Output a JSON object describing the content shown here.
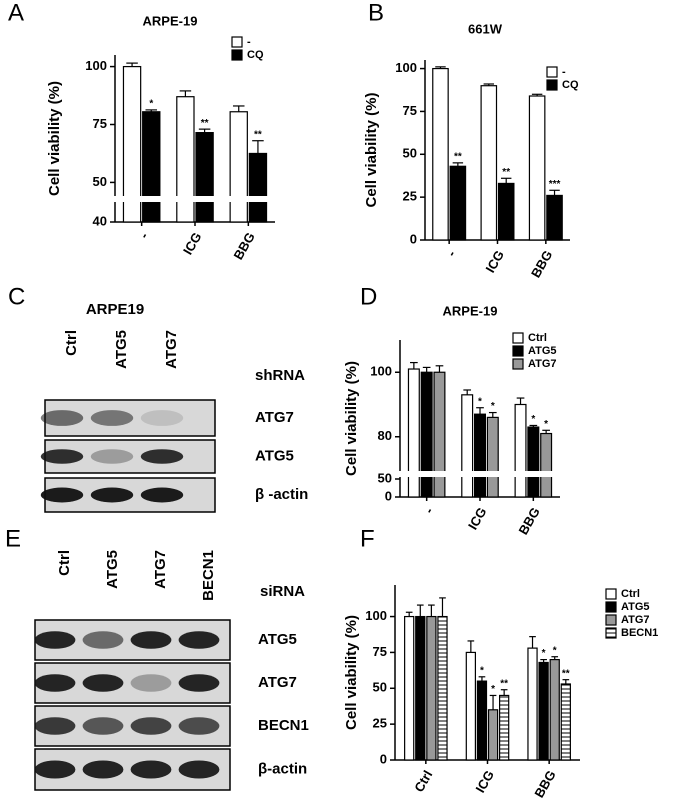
{
  "chart_data": [
    {
      "type": "bar",
      "panel": "A",
      "title": "ARPE-19",
      "y_label": "Cell viability (%)",
      "categories": [
        "-",
        "ICG",
        "BBG"
      ],
      "ylim": [
        40,
        105
      ],
      "axis_break": [
        41,
        45
      ],
      "yticks": [
        40,
        50,
        75,
        100
      ],
      "legend": "top-right",
      "series": [
        {
          "name": "-",
          "color": "#ffffff",
          "values": [
            100,
            87,
            80.5
          ],
          "errors": [
            1.5,
            2.5,
            2.5
          ]
        },
        {
          "name": "CQ",
          "color": "#000000",
          "values": [
            80.5,
            71.5,
            62.5
          ],
          "errors": [
            0.8,
            1.5,
            5.5
          ],
          "annotations": [
            "*",
            "**",
            "**"
          ]
        }
      ]
    },
    {
      "type": "bar",
      "panel": "B",
      "title": "661W",
      "y_label": "Cell viability (%)",
      "categories": [
        "-",
        "ICG",
        "BBG"
      ],
      "ylim": [
        0,
        105
      ],
      "yticks": [
        0,
        25,
        50,
        75,
        100
      ],
      "legend": "top-right",
      "series": [
        {
          "name": "-",
          "color": "#ffffff",
          "values": [
            100,
            90,
            84
          ],
          "errors": [
            1,
            1,
            1
          ]
        },
        {
          "name": "CQ",
          "color": "#000000",
          "values": [
            43,
            33,
            26
          ],
          "errors": [
            2,
            3,
            3
          ],
          "annotations": [
            "**",
            "**",
            "***"
          ]
        }
      ]
    },
    {
      "type": "bar",
      "panel": "D",
      "title": "ARPE-19",
      "y_label": "Cell viability (%)",
      "categories": [
        "-",
        "ICG",
        "BBG"
      ],
      "ylim": [
        0,
        110
      ],
      "axis_break": [
        50,
        70
      ],
      "yticks": [
        0,
        50,
        80,
        100
      ],
      "legend": "top-right",
      "series": [
        {
          "name": "Ctrl",
          "color": "#ffffff",
          "values": [
            101,
            93,
            90
          ],
          "errors": [
            2,
            1.5,
            2
          ]
        },
        {
          "name": "ATG5",
          "color": "#000000",
          "values": [
            100,
            87,
            83
          ],
          "errors": [
            1.5,
            2,
            0.5
          ],
          "annotations": [
            null,
            "*",
            "*"
          ]
        },
        {
          "name": "ATG7",
          "color": "#999999",
          "values": [
            100,
            86,
            81
          ],
          "errors": [
            2,
            1.5,
            1
          ],
          "annotations": [
            null,
            "*",
            "*"
          ]
        }
      ]
    },
    {
      "type": "bar",
      "panel": "F",
      "y_label": "Cell viability (%)",
      "categories": [
        "Ctrl",
        "ICG",
        "BBG"
      ],
      "ylim": [
        0,
        122
      ],
      "yticks": [
        0,
        25,
        50,
        75,
        100
      ],
      "legend": "top-right",
      "series": [
        {
          "name": "Ctrl",
          "color": "#ffffff",
          "values": [
            100,
            75,
            78
          ],
          "errors": [
            3,
            8,
            8
          ]
        },
        {
          "name": "ATG5",
          "color": "#000000",
          "values": [
            100,
            55,
            68
          ],
          "errors": [
            8,
            3,
            2
          ],
          "annotations": [
            null,
            "*",
            "*"
          ]
        },
        {
          "name": "ATG7",
          "color": "#999999",
          "values": [
            100,
            35,
            70
          ],
          "errors": [
            8,
            10,
            2
          ],
          "annotations": [
            null,
            "*",
            "*"
          ]
        },
        {
          "name": "BECN1",
          "color": "#ffffff",
          "pattern": "horizontal-lines",
          "values": [
            100,
            45,
            53
          ],
          "errors": [
            13,
            4,
            3
          ],
          "annotations": [
            null,
            "**",
            "**"
          ]
        }
      ]
    }
  ],
  "blots": [
    {
      "panel": "C",
      "title": "ARPE19",
      "condition": "shRNA",
      "lanes": [
        "Ctrl",
        "ATG5",
        "ATG7"
      ],
      "rows": [
        "ATG7",
        "ATG5",
        "β -actin"
      ]
    },
    {
      "panel": "E",
      "condition": "siRNA",
      "lanes": [
        "Ctrl",
        "ATG5",
        "ATG7",
        "BECN1"
      ],
      "rows": [
        "ATG5",
        "ATG7",
        "BECN1",
        "β-actin"
      ]
    }
  ]
}
